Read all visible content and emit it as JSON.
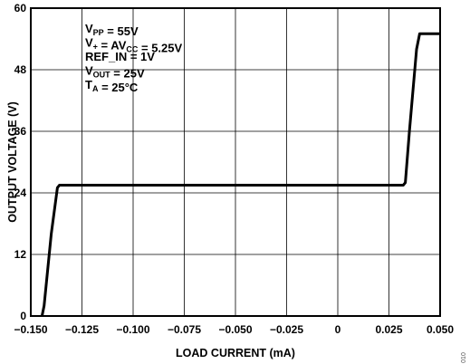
{
  "chart_data": {
    "type": "line",
    "xlabel": "LOAD CURRENT (mA)",
    "ylabel": "OUTPUT VOLTAGE (V)",
    "xlim": [
      -0.15,
      0.05
    ],
    "ylim": [
      0,
      60
    ],
    "x_ticks": [
      -0.15,
      -0.125,
      -0.1,
      -0.075,
      -0.05,
      -0.025,
      0,
      0.025,
      0.05
    ],
    "x_tick_labels": [
      "−0.150",
      "−0.125",
      "−0.100",
      "−0.075",
      "−0.050",
      "−0.025",
      "0",
      "0.025",
      "0.050"
    ],
    "y_ticks": [
      0,
      12,
      24,
      36,
      48,
      60
    ],
    "y_tick_labels": [
      "0",
      "12",
      "24",
      "36",
      "48",
      "60"
    ],
    "grid": true,
    "series": [
      {
        "x": [
          -0.1445,
          -0.1435,
          -0.14,
          -0.137,
          -0.136,
          0.032,
          0.033,
          0.035,
          0.0385,
          0.04,
          0.05
        ],
        "y": [
          0,
          2,
          16,
          25,
          25.5,
          25.5,
          26,
          36,
          52,
          55,
          55
        ]
      }
    ],
    "annotations": [
      {
        "main": "V",
        "sub": "PP",
        "tail": " = 55V"
      },
      {
        "main": "V",
        "sub": "+",
        "tail": " = AV",
        "sub2": "CC",
        "tail2": " = 5.25V"
      },
      {
        "main": "REF_IN = 1V"
      },
      {
        "main": "V",
        "sub": "OUT",
        "tail": " = 25V"
      },
      {
        "main": "T",
        "sub": "A",
        "tail": " = 25°C"
      }
    ],
    "figure_id": "010"
  }
}
